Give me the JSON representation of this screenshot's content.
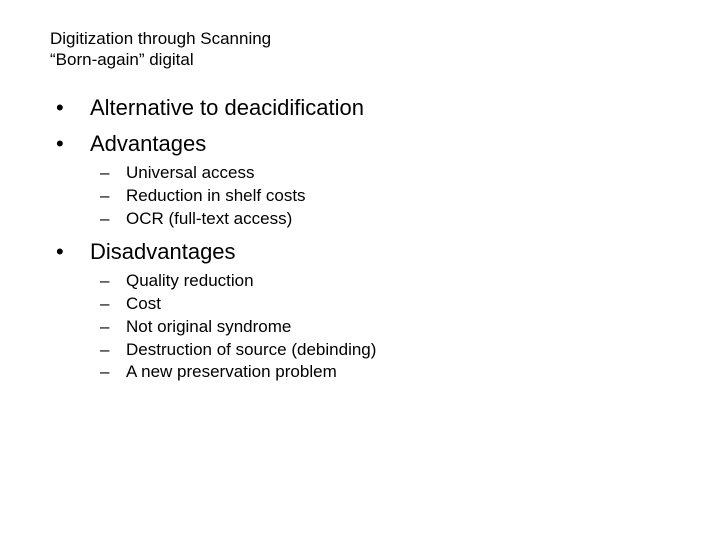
{
  "colors": {
    "background": "#ffffff",
    "text": "#000000"
  },
  "typography": {
    "font_family": "Comic Sans MS",
    "title_fontsize_pt": 13,
    "l1_fontsize_pt": 17,
    "l2_fontsize_pt": 13
  },
  "title": {
    "line1": "Digitization through Scanning",
    "line2": "“Born-again” digital"
  },
  "markers": {
    "l1": "•",
    "l2": "–"
  },
  "items": [
    {
      "text": "Alternative to deacidification",
      "sub": []
    },
    {
      "text": "Advantages",
      "sub": [
        "Universal access",
        "Reduction in shelf costs",
        "OCR (full-text access)"
      ]
    },
    {
      "text": "Disadvantages",
      "sub": [
        "Quality reduction",
        "Cost",
        "Not original syndrome",
        "Destruction of source (debinding)",
        "A new preservation problem"
      ]
    }
  ]
}
